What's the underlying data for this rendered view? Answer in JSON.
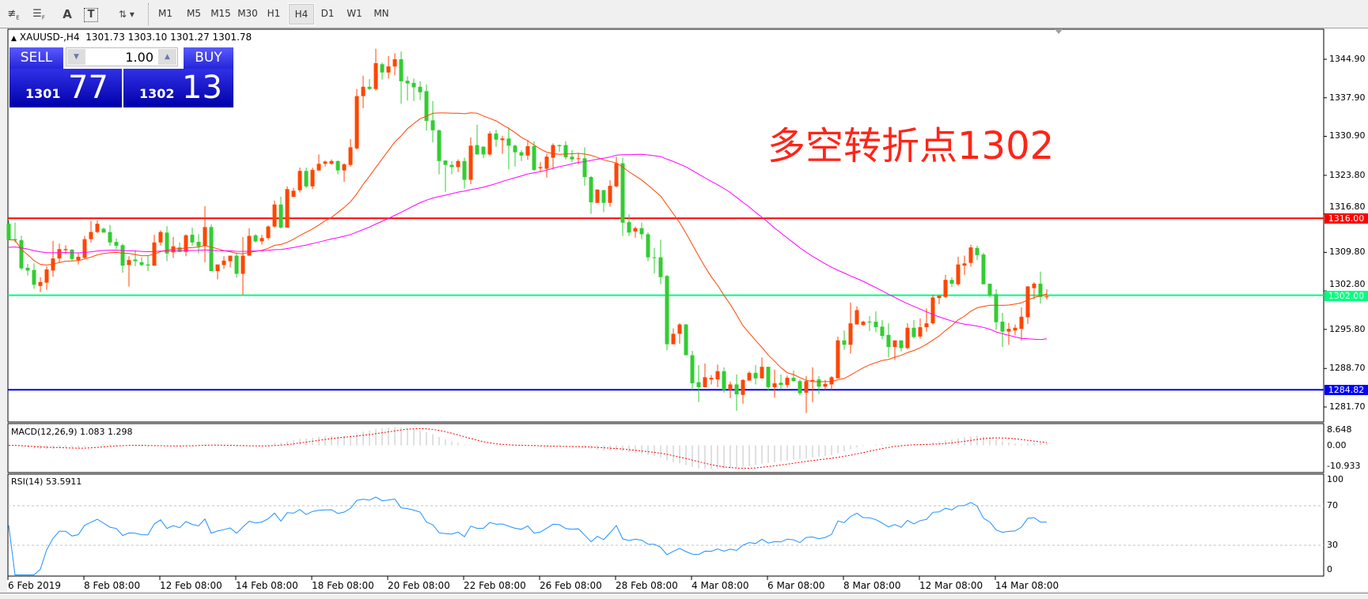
{
  "toolbar": {
    "icons": [
      "fibonacci-expansion-icon",
      "fibonacci-fan-icon",
      "text-icon",
      "text-label-icon",
      "arrows-icon"
    ],
    "icon_glyphs": {
      "text": "A",
      "label": "T"
    },
    "timeframes": [
      "M1",
      "M5",
      "M15",
      "M30",
      "H1",
      "H4",
      "D1",
      "W1",
      "MN"
    ],
    "active_timeframe": "H4"
  },
  "chart": {
    "symbol_header": "XAUUSD-,H4",
    "ohlc_header": "1301.73 1303.10 1301.27 1301.78"
  },
  "trade_panel": {
    "sell_label": "SELL",
    "buy_label": "BUY",
    "volume": "1.00",
    "bid_big": "1301",
    "bid_small": "77",
    "ask_big": "1302",
    "ask_small": "13"
  },
  "annotation": "多空转折点1302",
  "colors": {
    "bull": "#ff4500",
    "bear": "#32cd32",
    "ma_fast": "#ff4500",
    "ma_slow": "#ff00ff",
    "resistance": "#ff0000",
    "pivot": "#00ff7f",
    "support": "#0000ff",
    "rsi": "#1e90ff",
    "macd_signal": "#ff0000",
    "macd_hist": "#c0c0c0"
  },
  "chart_data": {
    "type": "candlestick",
    "price_ticks": [
      "1344.90",
      "1337.90",
      "1330.90",
      "1323.80",
      "1316.80",
      "1309.80",
      "1302.80",
      "1295.80",
      "1288.70",
      "1281.70"
    ],
    "x_labels": [
      "6 Feb 2019",
      "8 Feb 08:00",
      "12 Feb 08:00",
      "14 Feb 08:00",
      "18 Feb 08:00",
      "20 Feb 08:00",
      "22 Feb 08:00",
      "26 Feb 08:00",
      "28 Feb 08:00",
      "4 Mar 08:00",
      "6 Mar 08:00",
      "8 Mar 08:00",
      "12 Mar 08:00",
      "14 Mar 08:00"
    ],
    "horizontal_lines": [
      {
        "price": 1316.0,
        "label": "1316.00",
        "color": "#ff0000"
      },
      {
        "price": 1302.0,
        "label": "1302.00",
        "color": "#00ff7f"
      },
      {
        "price": 1284.82,
        "label": "1284.82",
        "color": "#0000ff"
      }
    ],
    "candles_ohlc": [
      [
        1315.0,
        1315.6,
        1312.1,
        1312.1
      ],
      [
        1312.2,
        1315.2,
        1311.6,
        1312.0
      ],
      [
        1312.0,
        1312.8,
        1306.6,
        1306.9
      ],
      [
        1307.0,
        1307.7,
        1305.6,
        1306.5
      ],
      [
        1306.6,
        1307.8,
        1303.2,
        1303.9
      ],
      [
        1303.7,
        1305.3,
        1302.6,
        1304.4
      ],
      [
        1304.3,
        1307.3,
        1303.0,
        1306.7
      ],
      [
        1306.5,
        1311.9,
        1305.4,
        1308.7
      ],
      [
        1308.7,
        1311.4,
        1308.0,
        1310.4
      ],
      [
        1310.2,
        1311.1,
        1309.5,
        1310.4
      ],
      [
        1310.3,
        1310.4,
        1308.2,
        1308.6
      ],
      [
        1308.4,
        1309.6,
        1307.6,
        1309.0
      ],
      [
        1308.8,
        1312.8,
        1308.7,
        1312.2
      ],
      [
        1312.2,
        1315.5,
        1311.6,
        1313.5
      ],
      [
        1313.5,
        1315.6,
        1313.3,
        1315.0
      ],
      [
        1314.1,
        1314.3,
        1313.4,
        1313.4
      ],
      [
        1313.5,
        1314.8,
        1311.0,
        1311.6
      ],
      [
        1311.7,
        1312.3,
        1310.4,
        1311.0
      ],
      [
        1311.1,
        1311.4,
        1306.1,
        1307.4
      ],
      [
        1307.5,
        1309.1,
        1303.6,
        1308.4
      ],
      [
        1308.5,
        1310.2,
        1307.3,
        1308.2
      ],
      [
        1308.0,
        1308.9,
        1307.3,
        1307.5
      ],
      [
        1307.6,
        1309.2,
        1306.4,
        1307.4
      ],
      [
        1307.4,
        1313.0,
        1307.3,
        1311.6
      ],
      [
        1311.6,
        1313.8,
        1311.1,
        1313.5
      ],
      [
        1313.4,
        1314.6,
        1308.2,
        1309.6
      ],
      [
        1309.8,
        1312.6,
        1308.8,
        1310.9
      ],
      [
        1310.7,
        1311.6,
        1309.8,
        1309.9
      ],
      [
        1309.9,
        1313.1,
        1309.1,
        1312.9
      ],
      [
        1313.0,
        1314.3,
        1311.0,
        1311.6
      ],
      [
        1311.7,
        1313.1,
        1309.6,
        1310.9
      ],
      [
        1310.9,
        1318.2,
        1308.0,
        1314.4
      ],
      [
        1314.4,
        1314.9,
        1306.4,
        1306.4
      ],
      [
        1306.4,
        1307.6,
        1304.9,
        1307.6
      ],
      [
        1307.5,
        1309.1,
        1306.8,
        1308.3
      ],
      [
        1308.2,
        1309.2,
        1307.1,
        1309.2
      ],
      [
        1309.2,
        1309.7,
        1305.2,
        1305.9
      ],
      [
        1305.9,
        1312.6,
        1302.1,
        1309.2
      ],
      [
        1309.2,
        1314.2,
        1309.2,
        1312.8
      ],
      [
        1312.9,
        1313.1,
        1311.6,
        1311.8
      ],
      [
        1311.8,
        1313.0,
        1311.2,
        1312.4
      ],
      [
        1312.4,
        1314.7,
        1312.1,
        1314.5
      ],
      [
        1314.5,
        1319.2,
        1314.3,
        1318.5
      ],
      [
        1318.5,
        1319.9,
        1314.1,
        1314.3
      ],
      [
        1314.3,
        1321.8,
        1314.3,
        1321.3
      ],
      [
        1319.9,
        1321.5,
        1319.8,
        1321.0
      ],
      [
        1321.1,
        1325.2,
        1320.7,
        1324.6
      ],
      [
        1324.6,
        1325.2,
        1321.5,
        1321.8
      ],
      [
        1321.8,
        1325.2,
        1321.3,
        1324.8
      ],
      [
        1324.7,
        1327.6,
        1324.6,
        1325.9
      ],
      [
        1325.9,
        1326.5,
        1325.4,
        1326.3
      ],
      [
        1325.9,
        1326.7,
        1325.7,
        1326.4
      ],
      [
        1326.4,
        1326.5,
        1324.0,
        1324.7
      ],
      [
        1324.7,
        1326.0,
        1322.6,
        1325.8
      ],
      [
        1325.7,
        1330.4,
        1325.4,
        1328.9
      ],
      [
        1328.7,
        1339.5,
        1328.5,
        1338.2
      ],
      [
        1338.2,
        1341.9,
        1336.0,
        1339.9
      ],
      [
        1339.9,
        1341.3,
        1339.3,
        1339.5
      ],
      [
        1339.5,
        1346.8,
        1339.2,
        1344.2
      ],
      [
        1344.0,
        1344.3,
        1341.2,
        1342.5
      ],
      [
        1342.5,
        1345.5,
        1341.4,
        1343.6
      ],
      [
        1343.6,
        1346.0,
        1342.0,
        1344.9
      ],
      [
        1344.9,
        1346.3,
        1336.8,
        1340.9
      ],
      [
        1341.0,
        1341.8,
        1337.4,
        1340.5
      ],
      [
        1340.6,
        1341.4,
        1337.3,
        1339.8
      ],
      [
        1339.9,
        1340.9,
        1337.5,
        1338.9
      ],
      [
        1339.1,
        1340.3,
        1331.9,
        1333.7
      ],
      [
        1333.8,
        1337.3,
        1329.8,
        1332.0
      ],
      [
        1332.0,
        1332.1,
        1324.0,
        1326.4
      ],
      [
        1326.5,
        1326.5,
        1320.8,
        1325.7
      ],
      [
        1325.7,
        1326.4,
        1324.0,
        1325.3
      ],
      [
        1325.3,
        1326.7,
        1324.4,
        1326.4
      ],
      [
        1326.4,
        1327.0,
        1321.4,
        1323.0
      ],
      [
        1323.0,
        1330.7,
        1322.2,
        1329.2
      ],
      [
        1329.3,
        1333.0,
        1327.6,
        1327.6
      ],
      [
        1329.0,
        1329.1,
        1326.9,
        1327.6
      ],
      [
        1327.6,
        1331.8,
        1327.4,
        1331.4
      ],
      [
        1331.4,
        1332.1,
        1329.0,
        1330.3
      ],
      [
        1330.2,
        1331.0,
        1327.7,
        1330.5
      ],
      [
        1330.5,
        1332.5,
        1324.9,
        1329.2
      ],
      [
        1329.2,
        1329.4,
        1325.4,
        1328.0
      ],
      [
        1328.0,
        1328.4,
        1326.4,
        1327.4
      ],
      [
        1327.4,
        1330.2,
        1326.6,
        1329.1
      ],
      [
        1329.1,
        1330.0,
        1324.6,
        1324.8
      ],
      [
        1325.1,
        1326.2,
        1324.5,
        1325.3
      ],
      [
        1325.0,
        1327.7,
        1323.4,
        1327.2
      ],
      [
        1327.0,
        1329.6,
        1324.9,
        1329.3
      ],
      [
        1329.3,
        1329.4,
        1328.1,
        1329.1
      ],
      [
        1329.3,
        1330.0,
        1326.7,
        1327.1
      ],
      [
        1327.2,
        1328.4,
        1326.2,
        1326.7
      ],
      [
        1326.8,
        1327.9,
        1325.8,
        1326.9
      ],
      [
        1326.9,
        1328.9,
        1321.9,
        1323.5
      ],
      [
        1323.5,
        1323.7,
        1316.8,
        1318.9
      ],
      [
        1318.8,
        1321.3,
        1318.8,
        1321.2
      ],
      [
        1321.1,
        1321.2,
        1317.1,
        1318.8
      ],
      [
        1318.8,
        1322.9,
        1318.1,
        1321.9
      ],
      [
        1321.8,
        1327.2,
        1321.6,
        1326.0
      ],
      [
        1326.0,
        1327.0,
        1312.8,
        1315.2
      ],
      [
        1315.3,
        1316.7,
        1312.8,
        1313.4
      ],
      [
        1313.6,
        1314.5,
        1312.5,
        1314.2
      ],
      [
        1314.2,
        1315.2,
        1312.2,
        1313.1
      ],
      [
        1313.1,
        1313.4,
        1308.2,
        1308.9
      ],
      [
        1308.9,
        1310.6,
        1306.0,
        1308.8
      ],
      [
        1308.9,
        1312.1,
        1304.0,
        1305.3
      ],
      [
        1305.5,
        1305.7,
        1292.0,
        1293.1
      ],
      [
        1293.1,
        1296.0,
        1293.1,
        1295.0
      ],
      [
        1295.0,
        1296.9,
        1293.2,
        1296.7
      ],
      [
        1296.7,
        1296.8,
        1291.1,
        1291.1
      ],
      [
        1291.1,
        1291.9,
        1284.8,
        1286.0
      ],
      [
        1286.2,
        1289.3,
        1282.6,
        1285.3
      ],
      [
        1285.3,
        1289.6,
        1285.3,
        1287.1
      ],
      [
        1286.7,
        1287.5,
        1285.8,
        1287.0
      ],
      [
        1286.7,
        1289.4,
        1285.3,
        1288.2
      ],
      [
        1288.2,
        1288.9,
        1284.3,
        1284.8
      ],
      [
        1284.8,
        1286.3,
        1283.3,
        1285.8
      ],
      [
        1285.8,
        1287.6,
        1281.0,
        1284.0
      ],
      [
        1283.9,
        1286.8,
        1282.3,
        1286.6
      ],
      [
        1286.5,
        1288.2,
        1286.5,
        1287.9
      ],
      [
        1287.9,
        1289.3,
        1285.8,
        1286.9
      ],
      [
        1286.9,
        1290.7,
        1286.9,
        1289.0
      ],
      [
        1289.0,
        1289.0,
        1284.6,
        1285.3
      ],
      [
        1285.3,
        1288.5,
        1283.4,
        1286.0
      ],
      [
        1286.1,
        1287.6,
        1284.9,
        1285.7
      ],
      [
        1285.7,
        1287.4,
        1285.2,
        1287.0
      ],
      [
        1287.0,
        1288.3,
        1286.3,
        1286.4
      ],
      [
        1286.4,
        1286.7,
        1283.8,
        1284.2
      ],
      [
        1284.3,
        1287.3,
        1280.6,
        1286.4
      ],
      [
        1286.4,
        1288.9,
        1282.6,
        1286.6
      ],
      [
        1286.7,
        1287.3,
        1284.1,
        1285.4
      ],
      [
        1285.4,
        1286.6,
        1284.8,
        1285.9
      ],
      [
        1285.8,
        1287.3,
        1284.8,
        1287.1
      ],
      [
        1286.9,
        1294.5,
        1286.9,
        1293.8
      ],
      [
        1293.8,
        1295.6,
        1292.1,
        1293.0
      ],
      [
        1293.0,
        1300.7,
        1291.4,
        1296.9
      ],
      [
        1296.7,
        1300.0,
        1296.7,
        1299.3
      ],
      [
        1296.6,
        1297.4,
        1296.4,
        1297.2
      ],
      [
        1297.2,
        1298.2,
        1295.5,
        1297.1
      ],
      [
        1297.2,
        1299.1,
        1295.3,
        1296.2
      ],
      [
        1296.3,
        1297.5,
        1294.0,
        1294.6
      ],
      [
        1294.8,
        1296.9,
        1290.7,
        1292.6
      ],
      [
        1292.6,
        1293.7,
        1290.3,
        1293.8
      ],
      [
        1293.8,
        1293.8,
        1291.8,
        1292.4
      ],
      [
        1292.4,
        1296.9,
        1292.2,
        1296.1
      ],
      [
        1296.1,
        1297.5,
        1294.2,
        1294.4
      ],
      [
        1294.5,
        1297.8,
        1294.1,
        1296.2
      ],
      [
        1296.2,
        1299.6,
        1295.4,
        1296.9
      ],
      [
        1296.9,
        1302.1,
        1296.7,
        1301.6
      ],
      [
        1301.5,
        1302.0,
        1300.4,
        1301.9
      ],
      [
        1301.7,
        1305.7,
        1301.5,
        1304.8
      ],
      [
        1304.8,
        1305.3,
        1303.5,
        1304.1
      ],
      [
        1304.0,
        1309.0,
        1303.7,
        1307.6
      ],
      [
        1307.4,
        1309.2,
        1305.7,
        1307.8
      ],
      [
        1307.9,
        1311.2,
        1307.2,
        1310.7
      ],
      [
        1310.6,
        1311.0,
        1308.4,
        1309.3
      ],
      [
        1309.4,
        1309.7,
        1304.0,
        1304.0
      ],
      [
        1304.1,
        1304.1,
        1301.6,
        1302.0
      ],
      [
        1302.2,
        1303.1,
        1295.7,
        1297.1
      ],
      [
        1297.2,
        1298.8,
        1292.6,
        1295.4
      ],
      [
        1295.4,
        1297.0,
        1293.0,
        1295.9
      ],
      [
        1295.6,
        1296.7,
        1294.8,
        1296.1
      ],
      [
        1295.9,
        1299.8,
        1293.8,
        1298.1
      ],
      [
        1298.0,
        1303.7,
        1296.8,
        1303.6
      ],
      [
        1303.3,
        1304.4,
        1301.3,
        1304.1
      ],
      [
        1304.1,
        1306.3,
        1300.5,
        1301.7
      ],
      [
        1301.73,
        1303.1,
        1301.27,
        1301.78
      ]
    ]
  },
  "macd": {
    "label": "MACD(12,26,9) 1.083 1.298",
    "ticks": [
      "8.648",
      "0.00",
      "-10.933"
    ],
    "range": [
      -10.933,
      8.648
    ]
  },
  "rsi": {
    "label": "RSI(14) 53.5911",
    "ticks": [
      "100",
      "70",
      "30",
      "0"
    ],
    "levels": [
      70,
      30
    ]
  }
}
